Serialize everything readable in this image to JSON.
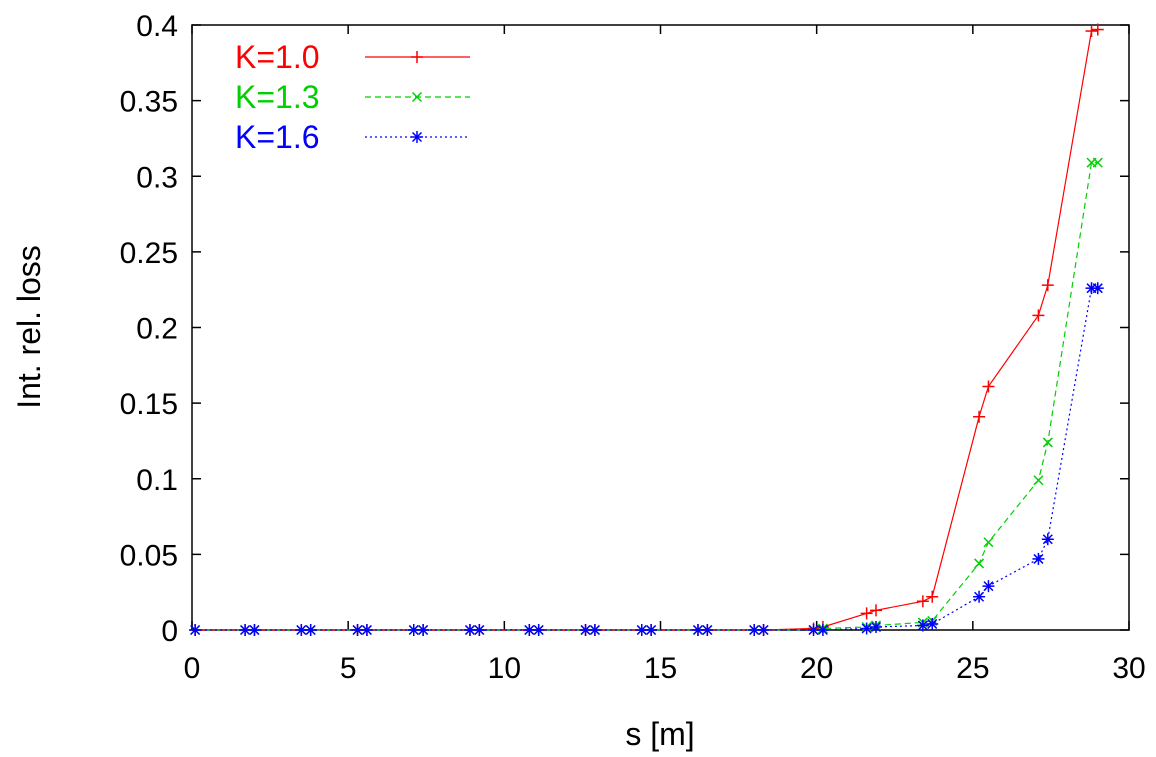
{
  "chart_data": {
    "type": "line",
    "title": "",
    "xlabel": "s [m]",
    "ylabel": "Int. rel. loss",
    "xlim": [
      0,
      30
    ],
    "ylim": [
      0,
      0.4
    ],
    "xticks": [
      "0",
      "5",
      "10",
      "15",
      "20",
      "25",
      "30"
    ],
    "yticks": [
      "0",
      "0.05",
      "0.1",
      "0.15",
      "0.2",
      "0.25",
      "0.3",
      "0.35",
      "0.4"
    ],
    "grid": false,
    "legend_position": "top-left",
    "x": [
      0.1,
      1.7,
      2.0,
      3.5,
      3.8,
      5.3,
      5.6,
      7.1,
      7.4,
      8.9,
      9.2,
      10.8,
      11.1,
      12.6,
      12.9,
      14.4,
      14.7,
      16.2,
      16.5,
      18.0,
      18.3,
      19.9,
      20.2,
      21.6,
      21.9,
      23.4,
      23.7,
      25.2,
      25.5,
      27.1,
      27.4,
      28.8,
      29.0
    ],
    "series": [
      {
        "name": "K=1.0",
        "color": "#ff0000",
        "marker": "plus",
        "dash": "solid",
        "values": [
          0,
          0,
          0,
          0,
          0,
          0,
          0,
          0,
          0,
          0,
          0,
          0,
          0,
          0,
          0,
          0,
          0,
          0,
          0,
          0,
          0,
          0.001,
          0.002,
          0.011,
          0.013,
          0.019,
          0.022,
          0.141,
          0.161,
          0.208,
          0.228,
          0.396,
          0.397
        ]
      },
      {
        "name": "K=1.3",
        "color": "#00d000",
        "marker": "x",
        "dash": "dashed",
        "values": [
          0,
          0,
          0,
          0,
          0,
          0,
          0,
          0,
          0,
          0,
          0,
          0,
          0,
          0,
          0,
          0,
          0,
          0,
          0,
          0,
          0,
          0,
          0.001,
          0.002,
          0.003,
          0.005,
          0.006,
          0.044,
          0.058,
          0.099,
          0.124,
          0.309,
          0.309
        ]
      },
      {
        "name": "K=1.6",
        "color": "#0000ff",
        "marker": "star",
        "dash": "dotted",
        "values": [
          0,
          0,
          0,
          0,
          0,
          0,
          0,
          0,
          0,
          0,
          0,
          0,
          0,
          0,
          0,
          0,
          0,
          0,
          0,
          0,
          0,
          0,
          0,
          0.001,
          0.002,
          0.003,
          0.004,
          0.022,
          0.029,
          0.047,
          0.06,
          0.226,
          0.226
        ]
      }
    ]
  }
}
